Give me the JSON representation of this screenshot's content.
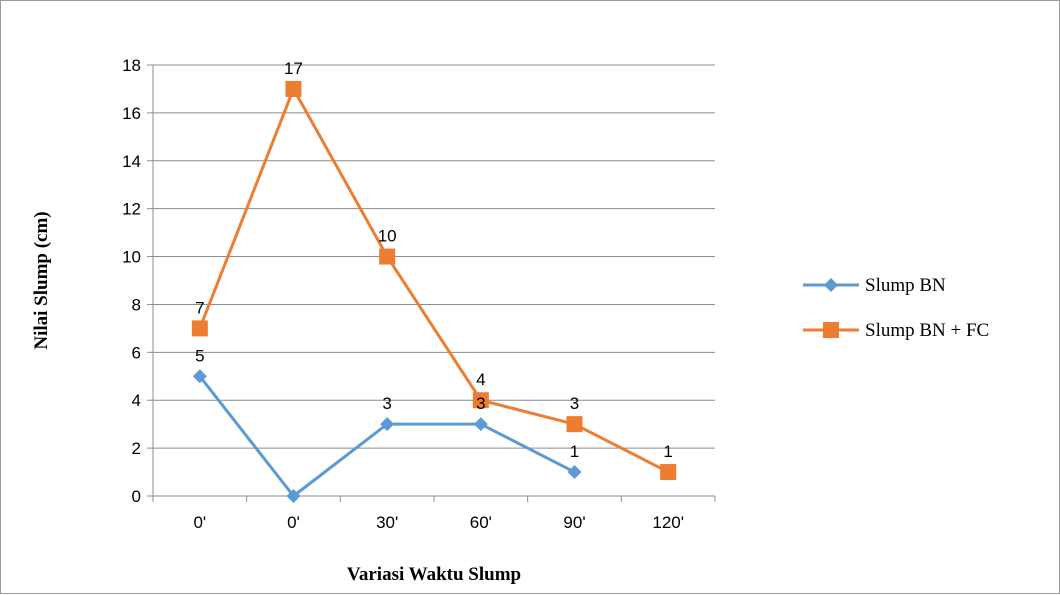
{
  "chart_data": {
    "type": "line",
    "title": "",
    "xlabel": "Variasi Waktu Slump",
    "ylabel": "Nilai Slump (cm)",
    "categories": [
      "0'",
      "0'",
      "30'",
      "60'",
      "90'",
      "120'"
    ],
    "ylim": [
      0,
      18
    ],
    "yticks": [
      0,
      2,
      4,
      6,
      8,
      10,
      12,
      14,
      16,
      18
    ],
    "grid": true,
    "legend_position": "right",
    "series": [
      {
        "name": "Slump BN",
        "color": "#5b9bd5",
        "marker": "diamond",
        "values": [
          5,
          0,
          3,
          3,
          1,
          null
        ],
        "data_labels": [
          "5",
          "",
          "3",
          "3",
          "1",
          ""
        ]
      },
      {
        "name": "Slump BN + FC",
        "color": "#ed7d31",
        "marker": "square",
        "values": [
          7,
          17,
          10,
          4,
          3,
          1
        ],
        "data_labels": [
          "7",
          "17",
          "10",
          "4",
          "3",
          "1"
        ]
      }
    ]
  }
}
